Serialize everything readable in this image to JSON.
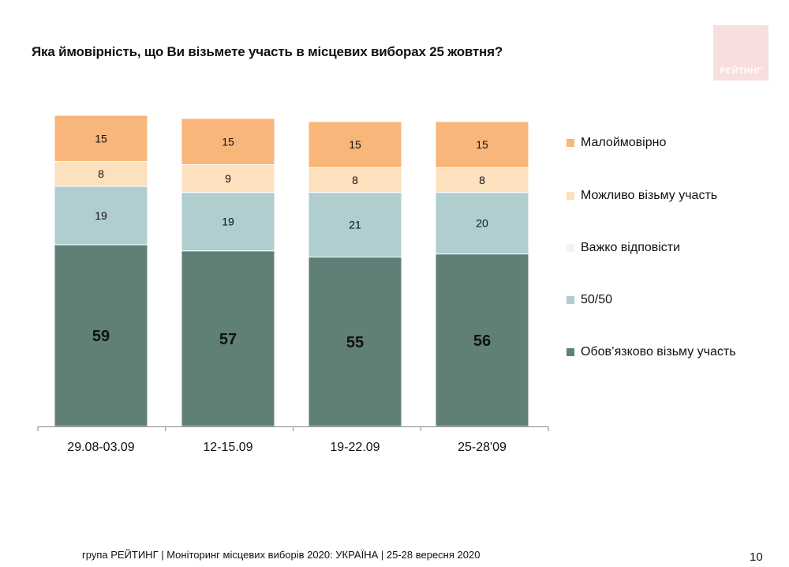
{
  "title": "Яка ймовірність, що Ви візьмете участь в місцевих виборах 25 жовтня?",
  "logo": {
    "text": "РЕЙТИНГ",
    "color": "#f8dede"
  },
  "footer": "група РЕЙТИНГ | Моніторинг місцевих виборів 2020: УКРАЇНА | 25-28 вересня 2020",
  "page_number": "10",
  "legend": [
    {
      "label": "Малоймовірно",
      "color": "#f9b67a"
    },
    {
      "label": "Можливо візьму участь",
      "color": "#fde0bd"
    },
    {
      "label": "Важко відповісти",
      "color": "#f4f4f4"
    },
    {
      "label": "50/50",
      "color": "#b0cdd0"
    },
    {
      "label": "Обов’язково візьму участь",
      "color": "#5f7f77"
    }
  ],
  "chart_data": {
    "type": "bar",
    "stacked": true,
    "categories": [
      "29.08-03.09",
      "12-15.09",
      "19-22.09",
      "25-28'09"
    ],
    "series": [
      {
        "name": "Обов’язково візьму участь",
        "color": "#5f7f77",
        "values": [
          59,
          57,
          55,
          56
        ]
      },
      {
        "name": "50/50",
        "color": "#b0cdd0",
        "values": [
          19,
          19,
          21,
          20
        ]
      },
      {
        "name": "Важко відповісти",
        "color": "#f4f4f4",
        "values": [
          null,
          null,
          null,
          null
        ]
      },
      {
        "name": "Можливо візьму участь",
        "color": "#fde0bd",
        "values": [
          8,
          9,
          8,
          8
        ]
      },
      {
        "name": "Малоймовірно",
        "color": "#f9b67a",
        "values": [
          15,
          15,
          15,
          15
        ]
      }
    ],
    "ylim": [
      0,
      100
    ],
    "grid": false,
    "legend_position": "right"
  }
}
